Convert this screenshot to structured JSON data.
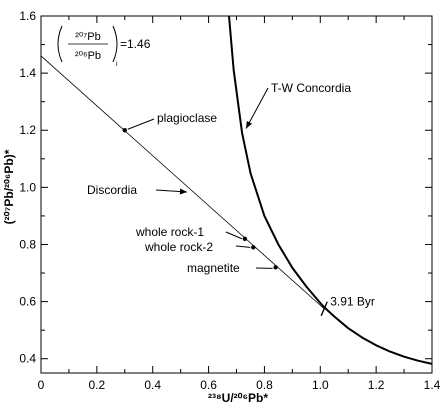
{
  "chart_data": {
    "type": "line",
    "title": "",
    "xlabel": "²³⁸U/²⁰⁶Pb*",
    "ylabel": "(²⁰⁷Pb/²⁰⁶Pb)*",
    "xlim": [
      0,
      1.4
    ],
    "ylim": [
      0.35,
      1.6
    ],
    "x_ticks": [
      0,
      0.2,
      0.4,
      0.6,
      0.8,
      1.0,
      1.2,
      1.4
    ],
    "x_tick_labels": [
      "0",
      "0.2",
      "0.4",
      "0.6",
      "0.8",
      "1.0",
      "1.2",
      "1.4"
    ],
    "y_ticks": [
      0.4,
      0.6,
      0.8,
      1.0,
      1.2,
      1.4,
      1.6
    ],
    "y_tick_labels": [
      "0.4",
      "0.6",
      "0.8",
      "1.0",
      "1.2",
      "1.4",
      "1.6"
    ],
    "grid": false,
    "legend": "none",
    "ratio_box": {
      "numerator": "²⁰⁷Pb",
      "denominator": "²⁰⁶Pb",
      "subscript": "i",
      "value_text": "=1.46"
    },
    "series": [
      {
        "name": "T-W Concordia",
        "label": "T-W Concordia",
        "color": "#000000",
        "x": [
          0.673,
          0.69,
          0.72,
          0.75,
          0.8,
          0.85,
          0.9,
          0.95,
          1.0,
          1.014,
          1.05,
          1.1,
          1.15,
          1.2,
          1.25,
          1.3,
          1.35,
          1.4
        ],
        "y": [
          1.6,
          1.41,
          1.19,
          1.05,
          0.9,
          0.8,
          0.718,
          0.653,
          0.595,
          0.58,
          0.548,
          0.507,
          0.474,
          0.447,
          0.425,
          0.407,
          0.393,
          0.382
        ]
      },
      {
        "name": "Discordia",
        "label": "Discordia",
        "color": "#000000",
        "x": [
          0,
          1.014
        ],
        "y": [
          1.46,
          0.575
        ]
      }
    ],
    "points": [
      {
        "label": "plagioclase",
        "x": 0.3,
        "y": 1.2
      },
      {
        "label": "whole rock-1",
        "x": 0.73,
        "y": 0.82
      },
      {
        "label": "whole rock-2",
        "x": 0.76,
        "y": 0.79
      },
      {
        "label": "magnetite",
        "x": 0.84,
        "y": 0.72
      }
    ],
    "annotations": [
      {
        "text": "3.91 Byr",
        "x": 1.014,
        "y": 0.575
      }
    ]
  }
}
